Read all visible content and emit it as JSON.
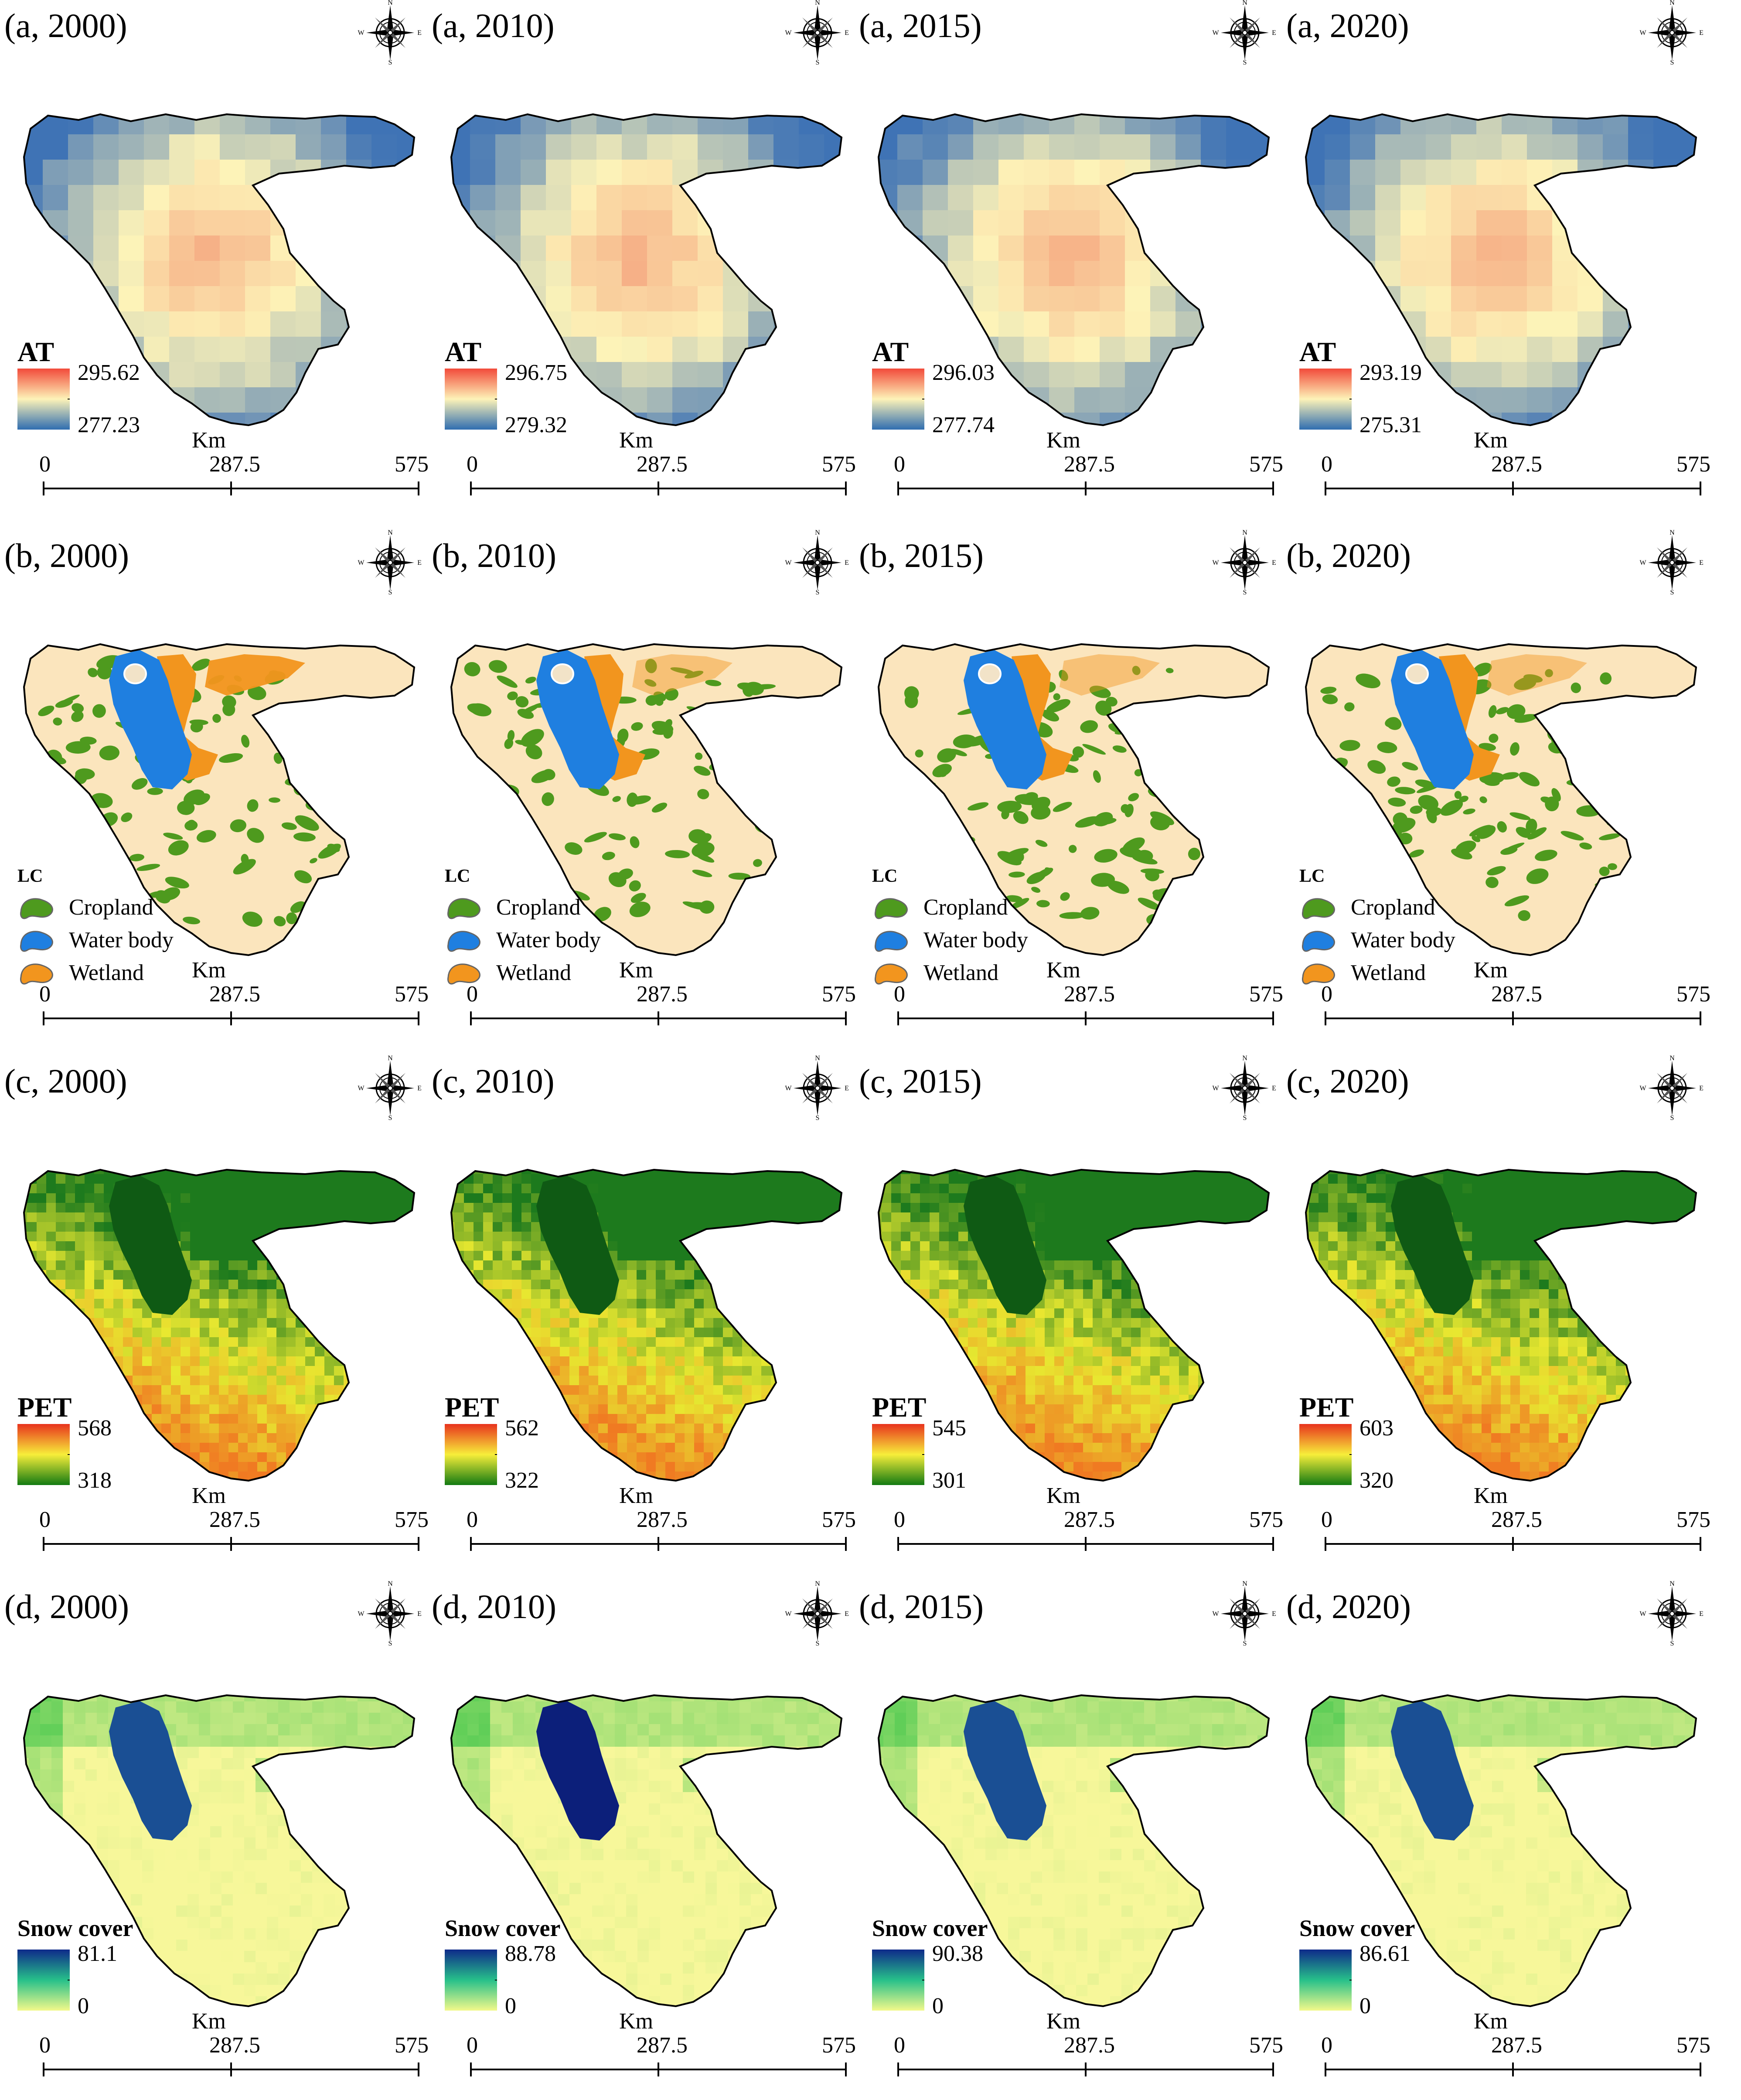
{
  "rows": [
    {
      "id": "a",
      "var": "AT",
      "ramp": "at",
      "panels": [
        {
          "title": "(a, 2000)",
          "max": "295.62",
          "min": "277.23"
        },
        {
          "title": "(a, 2010)",
          "max": "296.75",
          "min": "279.32"
        },
        {
          "title": "(a, 2015)",
          "max": "296.03",
          "min": "277.74"
        },
        {
          "title": "(a, 2020)",
          "max": "293.19",
          "min": "275.31"
        }
      ]
    },
    {
      "id": "b",
      "var": "LC",
      "ramp": "lc",
      "panels": [
        {
          "title": "(b, 2000)"
        },
        {
          "title": "(b, 2010)"
        },
        {
          "title": "(b, 2015)"
        },
        {
          "title": "(b, 2020)"
        }
      ]
    },
    {
      "id": "c",
      "var": "PET",
      "ramp": "pet",
      "panels": [
        {
          "title": "(c, 2000)",
          "max": "568",
          "min": "318"
        },
        {
          "title": "(c, 2010)",
          "max": "562",
          "min": "322"
        },
        {
          "title": "(c, 2015)",
          "max": "545",
          "min": "301"
        },
        {
          "title": "(c, 2020)",
          "max": "603",
          "min": "320"
        }
      ]
    },
    {
      "id": "d",
      "var": "Snow cover",
      "ramp": "snow",
      "panels": [
        {
          "title": "(d, 2000)",
          "max": "81.1",
          "min": "0"
        },
        {
          "title": "(d, 2010)",
          "max": "88.78",
          "min": "0"
        },
        {
          "title": "(d, 2015)",
          "max": "90.38",
          "min": "0"
        },
        {
          "title": "(d, 2020)",
          "max": "86.61",
          "min": "0"
        }
      ]
    }
  ],
  "lc_classes": [
    {
      "label": "Cropland",
      "color": "#4e9a1e"
    },
    {
      "label": "Water body",
      "color": "#1f7fe0"
    },
    {
      "label": "Wetland",
      "color": "#f2951e"
    }
  ],
  "land_color": "#fbe5bd",
  "scale": {
    "unit": "Km",
    "ticks": [
      "0",
      "287.5",
      "575"
    ]
  },
  "compass": {
    "n": "N",
    "s": "S",
    "e": "E",
    "w": "W"
  }
}
